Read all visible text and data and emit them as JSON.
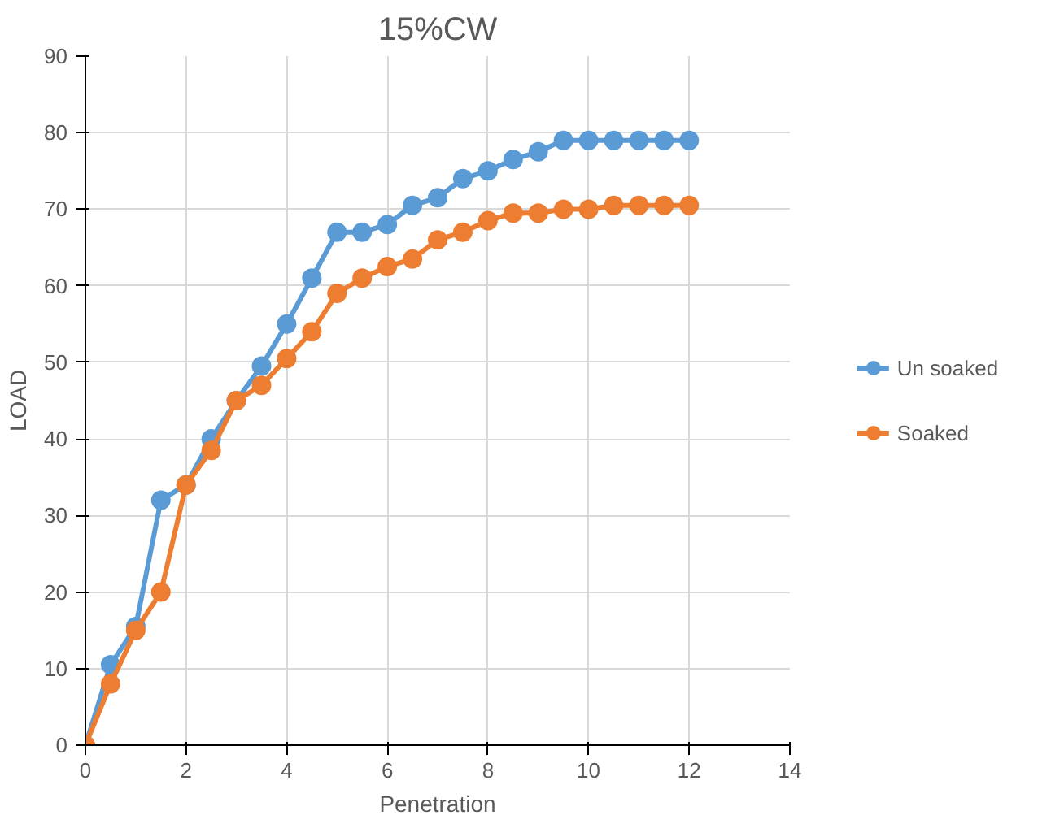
{
  "chart_data": {
    "type": "line",
    "title": "15%CW",
    "xlabel": "Penetration",
    "ylabel": "LOAD",
    "x": [
      0,
      0.5,
      1,
      1.5,
      2,
      2.5,
      3,
      3.5,
      4,
      4.5,
      5,
      5.5,
      6,
      6.5,
      7,
      7.5,
      8,
      8.5,
      9,
      9.5,
      10,
      10.5,
      11,
      11.5,
      12
    ],
    "series": [
      {
        "name": "Un soaked",
        "color": "#5b9bd5",
        "values": [
          0,
          10.5,
          15.5,
          32,
          34,
          40,
          45,
          49.5,
          55,
          61,
          67,
          67,
          68,
          70.5,
          71.5,
          74,
          75,
          76.5,
          77.5,
          79,
          79,
          79,
          79,
          79,
          79
        ]
      },
      {
        "name": "Soaked",
        "color": "#ed7d31",
        "values": [
          0,
          8,
          15,
          20,
          34,
          38.5,
          45,
          47,
          50.5,
          54,
          59,
          61,
          62.5,
          63.5,
          66,
          67,
          68.5,
          69.5,
          69.5,
          70,
          70,
          70.5,
          70.5,
          70.5,
          70.5
        ]
      }
    ],
    "xlim": [
      0,
      14
    ],
    "xticks": [
      0,
      2,
      4,
      6,
      8,
      10,
      12,
      14
    ],
    "ylim": [
      0,
      90
    ],
    "yticks": [
      0,
      10,
      20,
      30,
      40,
      50,
      60,
      70,
      80,
      90
    ],
    "grid": true,
    "legend": "right",
    "marker": "circle",
    "line_style": "solid"
  }
}
